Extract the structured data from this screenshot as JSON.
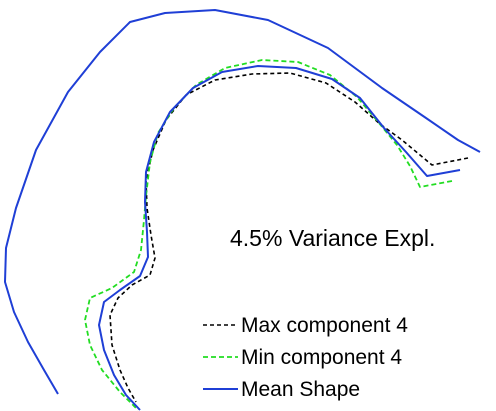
{
  "annotation": {
    "variance": "4.5% Variance Expl."
  },
  "legend": {
    "items": [
      {
        "label": "Max component 4",
        "color": "#000000",
        "style": "dashed"
      },
      {
        "label": "Min component 4",
        "color": "#22dd22",
        "style": "dashed"
      },
      {
        "label": "Mean Shape",
        "color": "#1f3fd6",
        "style": "solid"
      }
    ]
  },
  "colors": {
    "max_component": "#000000",
    "min_component": "#22dd22",
    "mean_shape": "#1f3fd6"
  }
}
